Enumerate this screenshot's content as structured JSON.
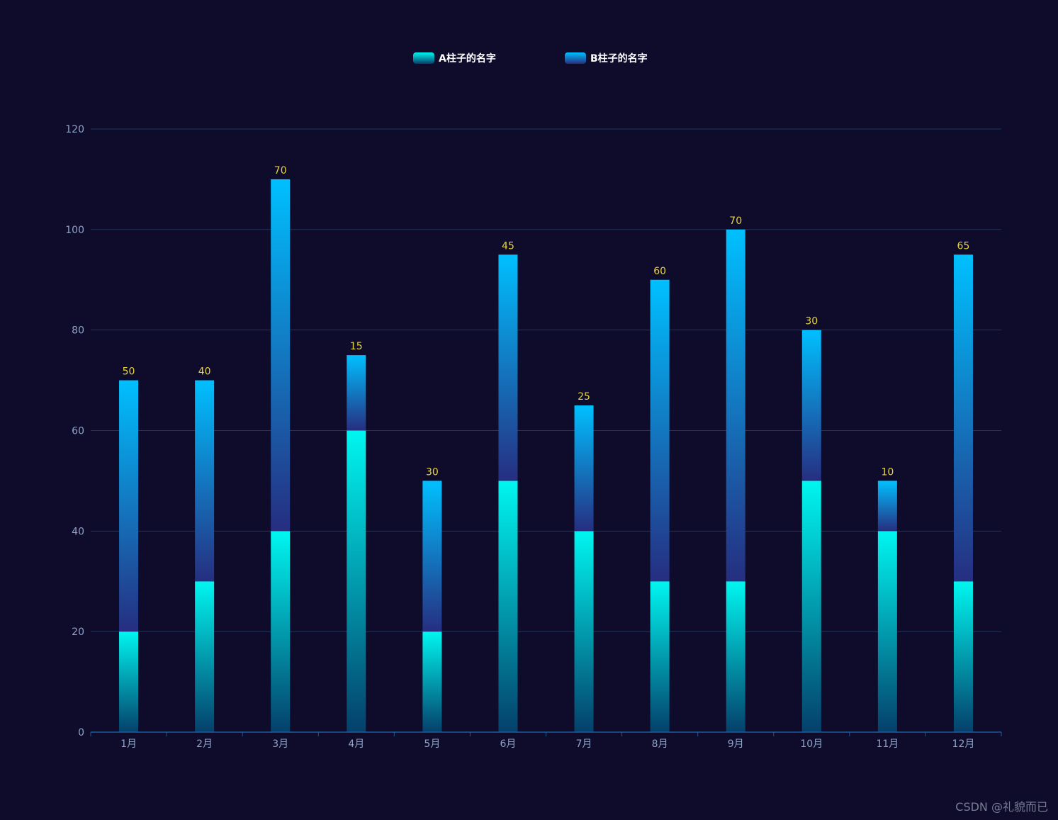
{
  "chart_data": {
    "type": "bar",
    "stacked": true,
    "categories": [
      "1月",
      "2月",
      "3月",
      "4月",
      "5月",
      "6月",
      "7月",
      "8月",
      "9月",
      "10月",
      "11月",
      "12月"
    ],
    "series": [
      {
        "name": "A柱子的名字",
        "values": [
          20,
          30,
          40,
          60,
          20,
          50,
          40,
          30,
          30,
          50,
          40,
          30
        ],
        "color_top": "#00f6f0",
        "color_bottom": "#04406b"
      },
      {
        "name": "B柱子的名字",
        "values": [
          50,
          40,
          70,
          15,
          30,
          45,
          25,
          60,
          70,
          30,
          10,
          65
        ],
        "color_top": "#00c0ff",
        "color_bottom": "#262e80"
      }
    ],
    "data_labels": "series B value shown above each stacked bar",
    "yticks": [
      0,
      20,
      40,
      60,
      80,
      100,
      120
    ],
    "ylim": [
      0,
      120
    ],
    "legend_position": "top-center",
    "title": "",
    "xlabel": "",
    "ylabel": ""
  },
  "watermark": "CSDN @礼貌而已"
}
